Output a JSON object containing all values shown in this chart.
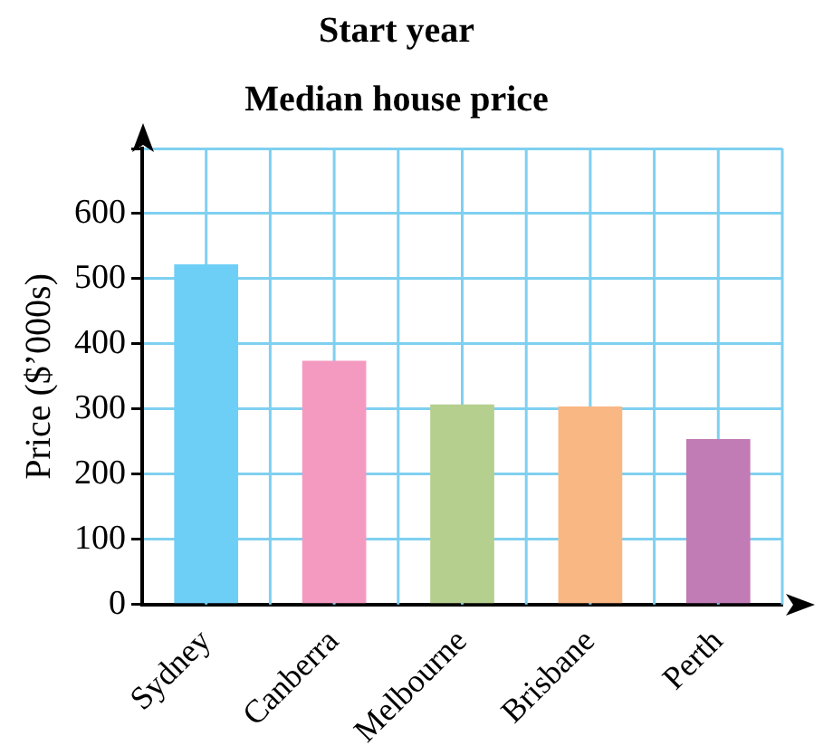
{
  "chart_data": {
    "type": "bar",
    "title": "Start year",
    "subtitle": "Median house price",
    "ylabel": "Price ($’000s)",
    "categories": [
      "Sydney",
      "Canberra",
      "Melbourne",
      "Brisbane",
      "Perth"
    ],
    "values": [
      522,
      374,
      307,
      304,
      254
    ],
    "colors": [
      "#6dcff6",
      "#f49ac1",
      "#b5cf8f",
      "#f9b784",
      "#c17bb5"
    ],
    "ylim": [
      0,
      700
    ],
    "yticks": [
      0,
      100,
      200,
      300,
      400,
      500,
      600,
      {
        "value": 700,
        "label": null
      }
    ],
    "grid": true,
    "legend": false
  }
}
